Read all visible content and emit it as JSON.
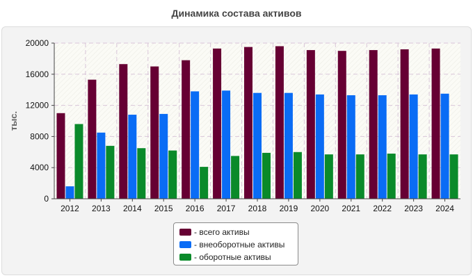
{
  "title": "Динамика состава активов",
  "chart_data": {
    "type": "bar",
    "title": "Динамика состава активов",
    "xlabel": "",
    "ylabel": "тыс.",
    "ylim": [
      0,
      20000
    ],
    "yticks": [
      0,
      4000,
      8000,
      12000,
      16000,
      20000
    ],
    "grid": true,
    "legend_position": "bottom",
    "categories": [
      "2012",
      "2013",
      "2014",
      "2015",
      "2016",
      "2017",
      "2018",
      "2019",
      "2020",
      "2021",
      "2022",
      "2023",
      "2024"
    ],
    "series": [
      {
        "name": "- всего активы",
        "color": "#660033",
        "values": [
          11000,
          15300,
          17300,
          17000,
          17800,
          19300,
          19500,
          19600,
          19100,
          19000,
          19100,
          19200,
          19300
        ]
      },
      {
        "name": "- внеоборотные активы",
        "color": "#0a6cf5",
        "values": [
          1600,
          8500,
          10800,
          10900,
          13800,
          13900,
          13600,
          13600,
          13400,
          13300,
          13300,
          13400,
          13500
        ]
      },
      {
        "name": "- оборотные активы",
        "color": "#0a8a2a",
        "values": [
          9600,
          6800,
          6500,
          6200,
          4100,
          5500,
          5900,
          6000,
          5700,
          5700,
          5800,
          5700,
          5700
        ]
      }
    ]
  }
}
